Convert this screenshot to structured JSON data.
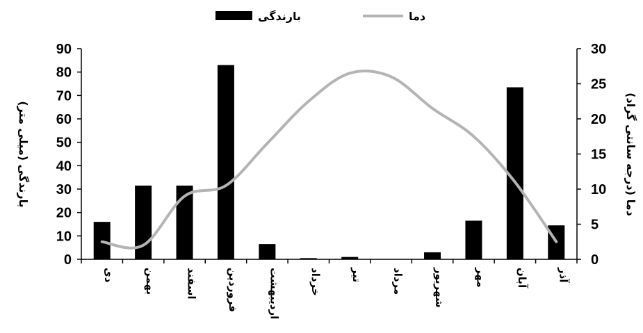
{
  "chart_data": {
    "type": "bar",
    "categories": [
      "دی",
      "بهمن",
      "اسفند",
      "فروردین",
      "اردیبهشت",
      "خرداد",
      "تیر",
      "مرداد",
      "شهریور",
      "مهر",
      "آبان",
      "آذر"
    ],
    "series": [
      {
        "name": "بارندگی",
        "type": "bar",
        "axis": "left",
        "color": "#000000",
        "values": [
          16,
          31.5,
          31.5,
          83,
          6.5,
          0.5,
          1,
          0,
          3,
          16.5,
          73.5,
          14.5
        ]
      },
      {
        "name": "دما",
        "type": "line",
        "axis": "right",
        "color": "#b4b4b4",
        "values": [
          2.5,
          2,
          9,
          10.5,
          16.5,
          22.5,
          26.5,
          26,
          21.5,
          17.5,
          11,
          2.5
        ]
      }
    ],
    "ylabel": "بارندگی (میلی متر)",
    "y2label": "دما (درجه سانتی گراد)",
    "ylim": [
      0,
      90
    ],
    "y2lim": [
      0,
      30
    ],
    "yticks": [
      "0",
      "10",
      "20",
      "30",
      "40",
      "50",
      "60",
      "70",
      "80",
      "90"
    ],
    "y2ticks": [
      "0",
      "5",
      "10",
      "15",
      "20",
      "25",
      "30"
    ],
    "grid": false,
    "legend_position": "top"
  }
}
